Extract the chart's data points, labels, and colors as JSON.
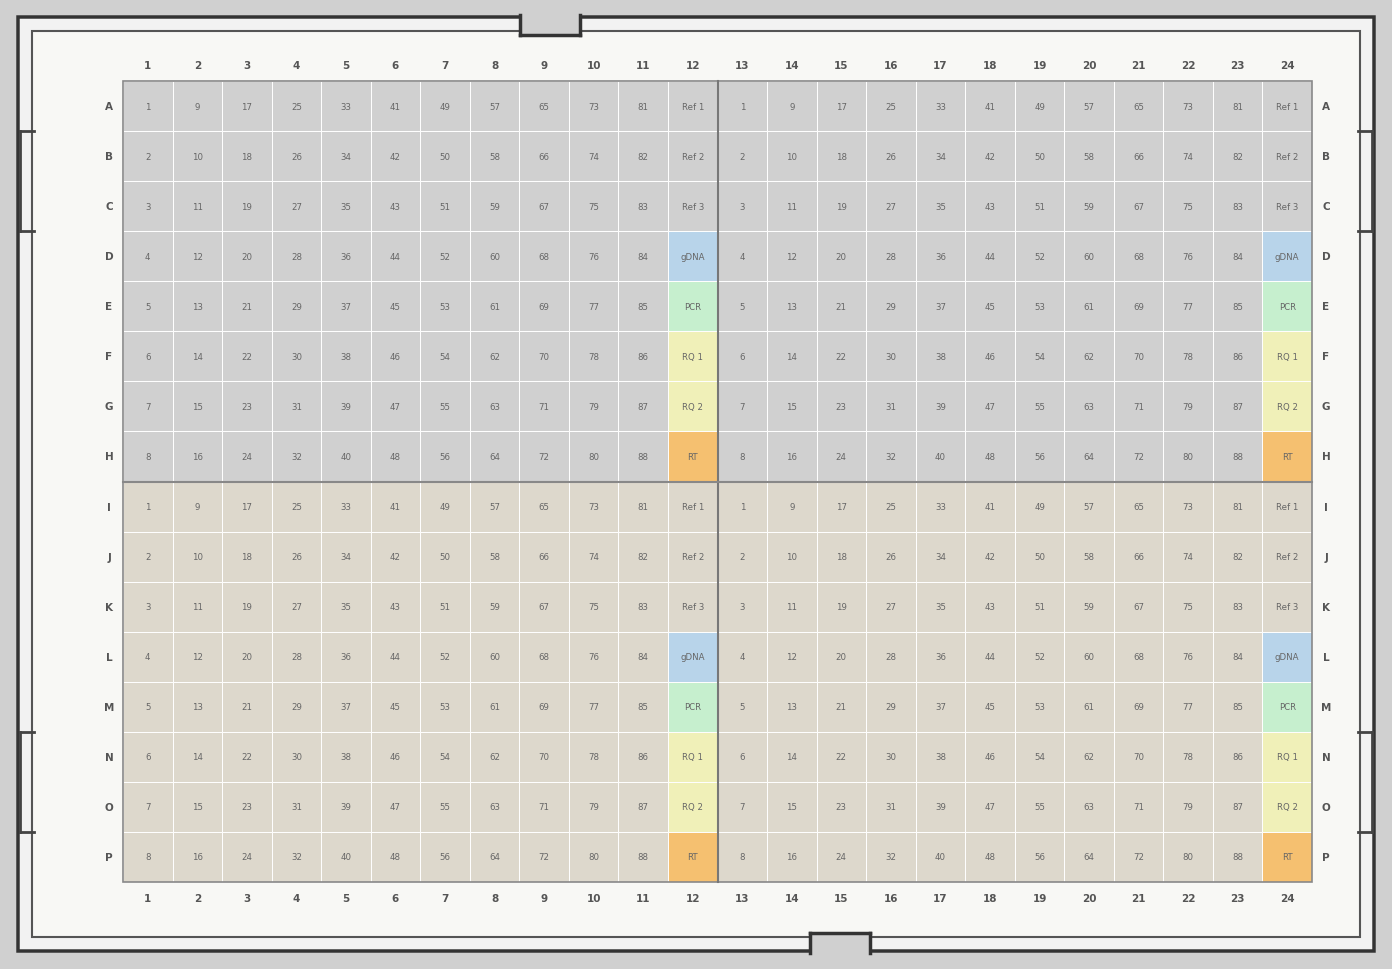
{
  "rows": [
    "A",
    "B",
    "C",
    "D",
    "E",
    "F",
    "G",
    "H",
    "I",
    "J",
    "K",
    "L",
    "M",
    "N",
    "O",
    "P"
  ],
  "cols": [
    1,
    2,
    3,
    4,
    5,
    6,
    7,
    8,
    9,
    10,
    11,
    12,
    13,
    14,
    15,
    16,
    17,
    18,
    19,
    20,
    21,
    22,
    23,
    24
  ],
  "n_rows": 16,
  "n_cols": 24,
  "cell_bg_top": "#d0d0d0",
  "cell_bg_bot": "#ddd8cc",
  "cell_border": "#ffffff",
  "special_labels": [
    "Ref 1",
    "Ref 2",
    "Ref 3",
    "gDNA",
    "PCR",
    "RQ 1",
    "RQ 2",
    "RT"
  ],
  "special_colors": [
    "#d0d0d0",
    "#d0d0d0",
    "#d0d0d0",
    "#b8d4ea",
    "#c6efce",
    "#f0f0b8",
    "#f0f0b8",
    "#f5c070"
  ],
  "special_colors_bot": [
    "#ddd8cc",
    "#ddd8cc",
    "#ddd8cc",
    "#b8d4ea",
    "#c6efce",
    "#f0f0b8",
    "#f0f0b8",
    "#f5c070"
  ],
  "plate_outer_bg": "#ffffff",
  "plate_inner_bg": "#f8f8f8",
  "fig_bg": "#d0d0d0",
  "outer_border_color": "#444444",
  "grid_border_color": "#888888",
  "cell_text_color": "#666666",
  "header_text_color": "#555555"
}
